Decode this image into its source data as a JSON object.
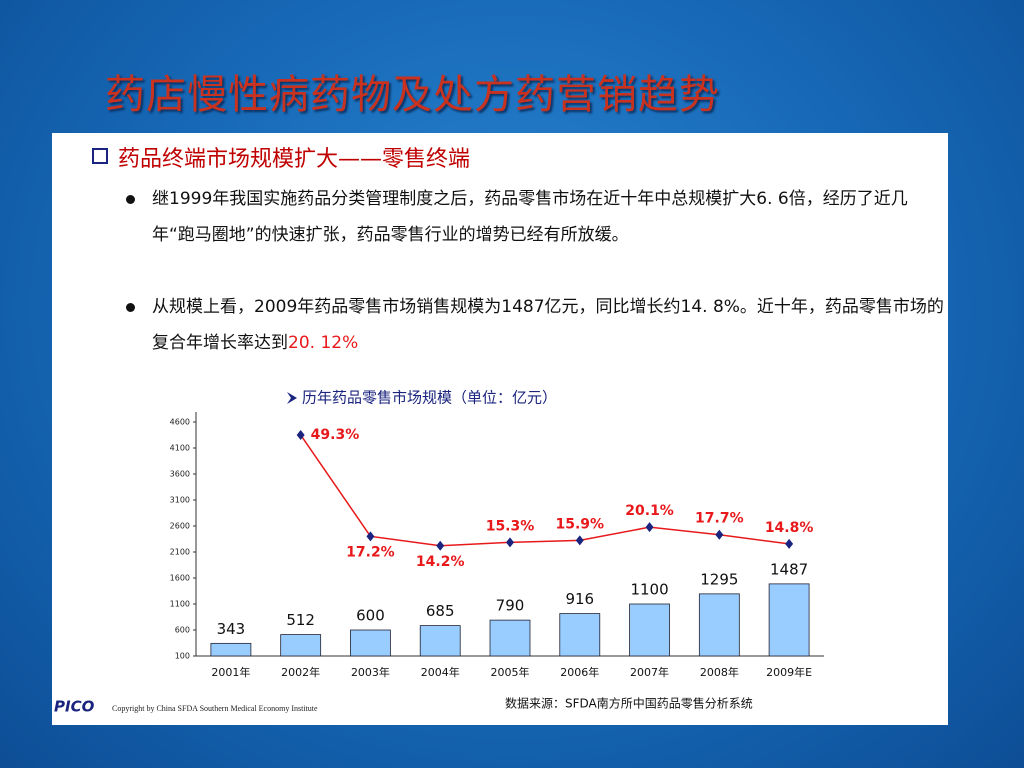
{
  "slide_title": "药店慢性病药物及处方药营销趋势",
  "section_heading": "药品终端市场规模扩大——零售终端",
  "bullets": [
    "继1999年我国实施药品分类管理制度之后，药品零售市场在近十年中总规模扩大6. 6倍，经历了近几年“跑马圈地”的快速扩张，药品零售行业的增势已经有所放缓。",
    "从规模上看，2009年药品零售市场销售规模为1487亿元，同比增长约14. 8%。近十年，药品零售市场的复合年增长率达到"
  ],
  "bullet_highlight": "20. 12%",
  "logo": "PICO",
  "copyright": "Copyright by China SFDA Southern  Medical Economy Institute",
  "source": "数据来源：SFDA南方所中国药品零售分析系统",
  "chart_data": {
    "type": "bar",
    "title": "历年药品零售市场规模（单位：亿元）",
    "categories": [
      "2001年",
      "2002年",
      "2003年",
      "2004年",
      "2005年",
      "2006年",
      "2007年",
      "2008年",
      "2009年E"
    ],
    "series": [
      {
        "name": "规模",
        "type": "bar",
        "color": "#99ccff",
        "values": [
          343,
          512,
          600,
          685,
          790,
          916,
          1100,
          1295,
          1487
        ]
      },
      {
        "name": "增长率",
        "type": "line",
        "axis": "y2",
        "color": "#e8191b",
        "marker_color": "#1a237e",
        "values": [
          null,
          49.3,
          17.2,
          14.2,
          15.3,
          15.9,
          20.1,
          17.7,
          14.8
        ],
        "value_labels": [
          null,
          "49.3%",
          "17.2%",
          "14.2%",
          "15.3%",
          "15.9%",
          "20.1%",
          "17.7%",
          "14.8%"
        ]
      }
    ],
    "ylim": [
      100,
      4600
    ],
    "yticks": [
      100,
      600,
      1100,
      1600,
      2100,
      2600,
      3100,
      3600,
      4100,
      4600
    ],
    "y2lim": [
      -20.7,
      53.4
    ],
    "grid": false
  }
}
